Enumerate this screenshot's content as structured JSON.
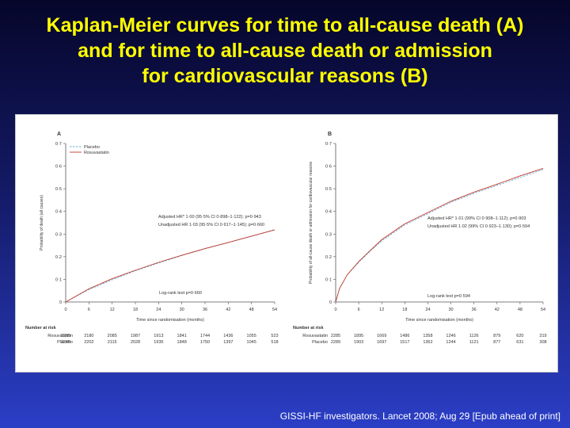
{
  "slide": {
    "title_lines": [
      "Kaplan-Meier curves for time to all-cause death (A)",
      "and for time to all-cause death or admission",
      "for cardiovascular reasons (B)"
    ],
    "citation": "GISSI-HF investigators. Lancet 2008; Aug 29 [Epub ahead of print]"
  },
  "colors": {
    "title": "#ffff00",
    "placebo": "#6aaed6",
    "rosuvastatin": "#c0392b"
  },
  "chart_data": [
    {
      "type": "line",
      "panel_label": "A",
      "ylabel": "Probability of death (all causes)",
      "xlabel": "Time since randomisation (months)",
      "xlim": [
        0,
        54
      ],
      "ylim": [
        0,
        0.7
      ],
      "x_ticks": [
        "0",
        "6",
        "12",
        "18",
        "24",
        "30",
        "36",
        "42",
        "48",
        "54"
      ],
      "y_ticks": [
        "0",
        "0·1",
        "0·2",
        "0·3",
        "0·4",
        "0·5",
        "0·6",
        "0·7"
      ],
      "legend": {
        "placement": "top-left",
        "entries": [
          "Placebo",
          "Rosuvastatin"
        ]
      },
      "series": [
        {
          "name": "Placebo",
          "style": "dashed",
          "x": [
            0,
            6,
            12,
            18,
            24,
            30,
            36,
            42,
            48,
            54
          ],
          "y": [
            0,
            0.055,
            0.098,
            0.138,
            0.172,
            0.205,
            0.235,
            0.262,
            0.29,
            0.32
          ]
        },
        {
          "name": "Rosuvastatin",
          "style": "solid",
          "x": [
            0,
            6,
            12,
            18,
            24,
            30,
            36,
            42,
            48,
            54
          ],
          "y": [
            0,
            0.058,
            0.103,
            0.14,
            0.175,
            0.206,
            0.236,
            0.263,
            0.291,
            0.318
          ]
        }
      ],
      "annotations": [
        "Adjusted HR* 1·00 (95·5% CI 0·898–1·122); p=0·943",
        "Unadjusted HR 1·03 (95·5% CI 0·917–1·145); p=0·660",
        "Log-rank test p=0·660"
      ],
      "at_risk": {
        "heading": "Number at risk",
        "rows": [
          {
            "name": "Rosuvastatin",
            "values": [
              "2285",
              "2180",
              "2085",
              "1987",
              "1913",
              "1841",
              "1744",
              "1436",
              "1055",
              "523"
            ]
          },
          {
            "name": "Placebo",
            "values": [
              "2289",
              "2202",
              "2115",
              "2028",
              "1935",
              "1848",
              "1750",
              "1397",
              "1045",
              "518"
            ]
          }
        ]
      }
    },
    {
      "type": "line",
      "panel_label": "B",
      "ylabel": "Probability of all-cause death or admission for cardiovascular reasons",
      "xlabel": "Time since randomisation (months)",
      "xlim": [
        0,
        54
      ],
      "ylim": [
        0,
        0.7
      ],
      "x_ticks": [
        "0",
        "6",
        "12",
        "18",
        "24",
        "30",
        "36",
        "42",
        "48",
        "54"
      ],
      "y_ticks": [
        "0",
        "0·1",
        "0·2",
        "0·3",
        "0·4",
        "0·5",
        "0·6",
        "0·7"
      ],
      "series": [
        {
          "name": "Placebo",
          "style": "dashed",
          "x": [
            0,
            1,
            3,
            6,
            9,
            12,
            18,
            24,
            30,
            36,
            42,
            48,
            54
          ],
          "y": [
            0,
            0.06,
            0.12,
            0.175,
            0.225,
            0.27,
            0.34,
            0.39,
            0.44,
            0.48,
            0.515,
            0.55,
            0.585
          ]
        },
        {
          "name": "Rosuvastatin",
          "style": "solid",
          "x": [
            0,
            1,
            3,
            6,
            9,
            12,
            18,
            24,
            30,
            36,
            42,
            48,
            54
          ],
          "y": [
            0,
            0.06,
            0.12,
            0.178,
            0.228,
            0.275,
            0.345,
            0.395,
            0.445,
            0.485,
            0.52,
            0.557,
            0.59
          ]
        }
      ],
      "annotations": [
        "Adjusted HR* 1·01 (99% CI 0·908–1·112); p=0·903",
        "Unadjusted HR 1·02 (99% CI 0·923–1·130); p=0·594",
        "Log-rank test p=0·594"
      ],
      "at_risk": {
        "heading": "Number at risk",
        "rows": [
          {
            "name": "Rosuvastatin",
            "values": [
              "2285",
              "1895",
              "1669",
              "1486",
              "1358",
              "1246",
              "1126",
              "879",
              "620",
              "319"
            ]
          },
          {
            "name": "Placebo",
            "values": [
              "2289",
              "1903",
              "1697",
              "1517",
              "1362",
              "1244",
              "1121",
              "877",
              "631",
              "308"
            ]
          }
        ]
      }
    }
  ]
}
